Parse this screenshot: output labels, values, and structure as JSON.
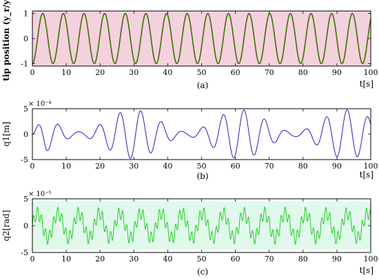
{
  "chart_data": [
    {
      "type": "line",
      "ylabel": "tip position (y_r/y)",
      "xlabel": "t[s]",
      "caption": "(a)",
      "xlim": [
        0,
        100
      ],
      "ylim": [
        -1.1,
        1.1
      ],
      "xticks": [
        "0",
        "10",
        "20",
        "30",
        "40",
        "50",
        "60",
        "70",
        "80",
        "90",
        "100"
      ],
      "yticks": [
        "-1",
        "0",
        "1"
      ],
      "multiplier": "",
      "series": [
        {
          "color": "#d40000",
          "amplitude": 1,
          "period_s": 6.1,
          "phase": "-cos",
          "description": "reference y_r"
        },
        {
          "color": "#00a000",
          "amplitude": 1,
          "period_s": 6.1,
          "phase": "-cos",
          "description": "response y (overlapping)"
        }
      ],
      "background_color": "#f3d2de"
    },
    {
      "type": "line",
      "ylabel": "q1[m]",
      "xlabel": "t[s]",
      "caption": "(b)",
      "xlim": [
        0,
        100
      ],
      "ylim": [
        -5,
        5
      ],
      "xticks": [
        "0",
        "10",
        "20",
        "30",
        "40",
        "50",
        "60",
        "70",
        "80",
        "90",
        "100"
      ],
      "yticks": [
        "-5",
        "0",
        "5"
      ],
      "multiplier": "× 10⁻⁴",
      "series": [
        {
          "color": "#2020c0",
          "envelope_max": 4.8,
          "carrier_period_s": 6.1,
          "beat_period_s": 31.7
        }
      ]
    },
    {
      "type": "line",
      "ylabel": "q2[rad]",
      "xlabel": "t[s]",
      "caption": "(c)",
      "xlim": [
        0,
        100
      ],
      "ylim": [
        -5,
        5
      ],
      "xticks": [
        "0",
        "10",
        "20",
        "30",
        "40",
        "50",
        "60",
        "70",
        "80",
        "90",
        "100"
      ],
      "yticks": [
        "-5",
        "0",
        "5"
      ],
      "multiplier": "× 10⁻⁵",
      "series": [
        {
          "color": "#22cc22",
          "amplitude": 3.3,
          "slow_period_s": 6.1,
          "fast_period_s": 1.2
        }
      ],
      "background_color": "#c9f4df"
    }
  ]
}
